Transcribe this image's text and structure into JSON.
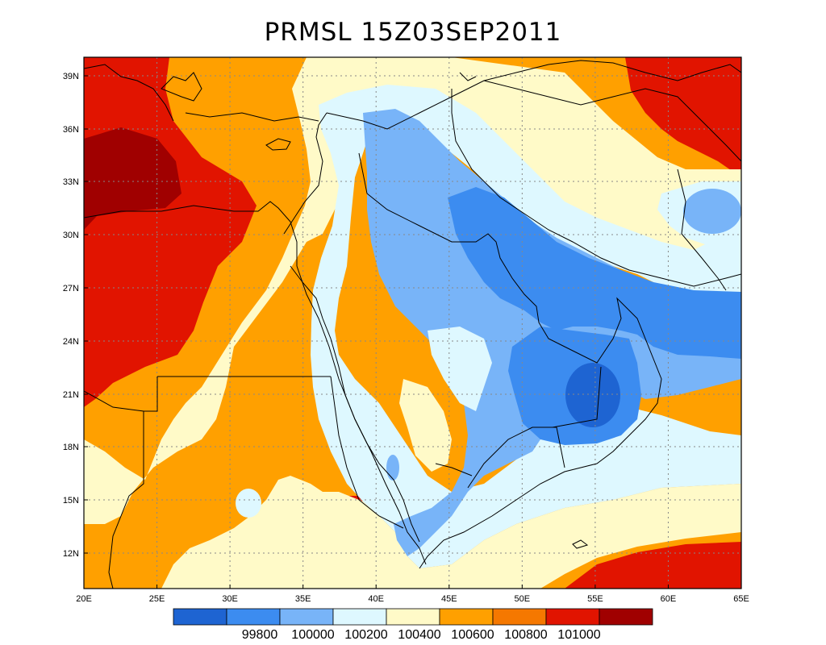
{
  "title": "PRMSL 15Z03SEP2011",
  "x_ticks": [
    "20E",
    "25E",
    "30E",
    "35E",
    "40E",
    "45E",
    "50E",
    "55E",
    "60E",
    "65E"
  ],
  "y_ticks": [
    "39N",
    "36N",
    "33N",
    "30N",
    "27N",
    "24N",
    "21N",
    "18N",
    "15N",
    "12N"
  ],
  "colorbar": {
    "colors": [
      "#1e64d2",
      "#3c8cf0",
      "#78b4f8",
      "#def8ff",
      "#fffac8",
      "#ffa000",
      "#f57800",
      "#e11400",
      "#a00000"
    ],
    "labels": [
      "99800",
      "100000",
      "100200",
      "100400",
      "100600",
      "100800",
      "101000"
    ]
  },
  "palette": {
    "c4": "#def8ff",
    "c5": "#fffac8",
    "c6": "#ffa000",
    "c7": "#e11400",
    "c8": "#a00000",
    "c3": "#78b4f8",
    "c2": "#3c8cf0",
    "c1": "#1e64d2"
  }
}
